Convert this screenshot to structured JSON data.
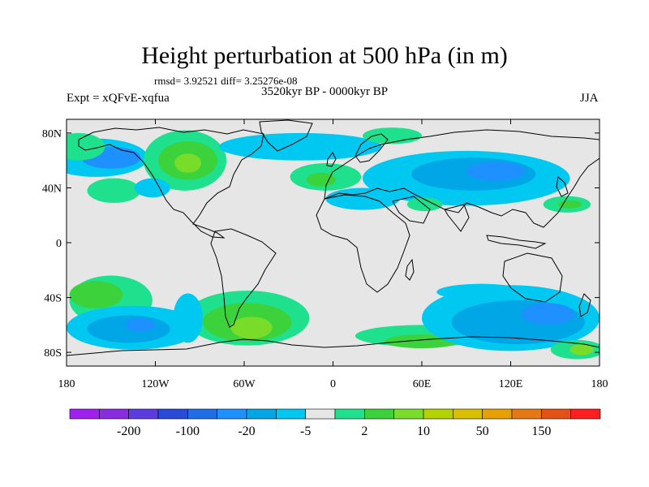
{
  "title": "Height perturbation at 500 hPa (in m)",
  "stats_text": "rmsd= 3.92521 diff= 3.25276e-08",
  "period_text": "3520kyr BP - 0000kyr BP",
  "experiment_text": "Expt = xQFvE-xqfua",
  "season_text": "JJA",
  "map": {
    "projection": "cylindrical-equidistant",
    "lon_range": [
      -180,
      180
    ],
    "lat_range": [
      -90,
      90
    ],
    "background_color": "#e6e6e6",
    "coastline_color": "#000000",
    "lat_ticks": [
      {
        "lat": 80,
        "label": "80N"
      },
      {
        "lat": 40,
        "label": "40N"
      },
      {
        "lat": 0,
        "label": "0"
      },
      {
        "lat": -40,
        "label": "40S"
      },
      {
        "lat": -80,
        "label": "80S"
      }
    ],
    "lon_ticks": [
      {
        "lon": -180,
        "label": "180"
      },
      {
        "lon": -120,
        "label": "120W"
      },
      {
        "lon": -60,
        "label": "60W"
      },
      {
        "lon": 0,
        "label": "0"
      },
      {
        "lon": 60,
        "label": "60E"
      },
      {
        "lon": 120,
        "label": "120E"
      },
      {
        "lon": 180,
        "label": "180"
      }
    ]
  },
  "colorbar": {
    "colors": [
      "#a020f0",
      "#8a2be2",
      "#5a3ce0",
      "#2a4bd8",
      "#1e6ee6",
      "#1e90ff",
      "#00a6e6",
      "#00c8f0",
      "#e6e6e6",
      "#1fe08c",
      "#3cd23c",
      "#78dc28",
      "#b4d200",
      "#d8c000",
      "#e6a000",
      "#e67814",
      "#e65014",
      "#ff1e1e"
    ],
    "labels": [
      {
        "after_index": 1,
        "text": "-200"
      },
      {
        "after_index": 3,
        "text": "-100"
      },
      {
        "after_index": 5,
        "text": "-20"
      },
      {
        "after_index": 7,
        "text": "-5"
      },
      {
        "after_index": 9,
        "text": "2"
      },
      {
        "after_index": 11,
        "text": "10"
      },
      {
        "after_index": 13,
        "text": "50"
      },
      {
        "after_index": 15,
        "text": "150"
      }
    ]
  },
  "anomaly_regions": [
    {
      "name": "north-pacific-negative",
      "color": "#00c8f0",
      "lon": -160,
      "lat": 62,
      "rx": 35,
      "ry": 14
    },
    {
      "name": "north-pacific-negative-core",
      "color": "#1e90ff",
      "lon": -150,
      "lat": 62,
      "rx": 20,
      "ry": 8
    },
    {
      "name": "alaska-positive",
      "color": "#1fe08c",
      "lon": -172,
      "lat": 70,
      "rx": 18,
      "ry": 10
    },
    {
      "name": "north-america-positive",
      "color": "#1fe08c",
      "lon": -100,
      "lat": 60,
      "rx": 28,
      "ry": 22
    },
    {
      "name": "north-america-positive-core",
      "color": "#3cd23c",
      "lon": -98,
      "lat": 60,
      "rx": 20,
      "ry": 14
    },
    {
      "name": "north-america-positive-peak",
      "color": "#78dc28",
      "lon": -98,
      "lat": 58,
      "rx": 9,
      "ry": 7
    },
    {
      "name": "east-pacific-positive",
      "color": "#1fe08c",
      "lon": -148,
      "lat": 38,
      "rx": 18,
      "ry": 9
    },
    {
      "name": "us-west-negative",
      "color": "#00c8f0",
      "lon": -122,
      "lat": 40,
      "rx": 12,
      "ry": 7
    },
    {
      "name": "atlantic-negative",
      "color": "#00c8f0",
      "lon": -22,
      "lat": 70,
      "rx": 55,
      "ry": 10
    },
    {
      "name": "europe-positive",
      "color": "#1fe08c",
      "lon": -5,
      "lat": 48,
      "rx": 24,
      "ry": 10
    },
    {
      "name": "europe-positive-core",
      "color": "#3cd23c",
      "lon": -8,
      "lat": 46,
      "rx": 10,
      "ry": 5
    },
    {
      "name": "arctic-positive",
      "color": "#1fe08c",
      "lon": 40,
      "lat": 78,
      "rx": 20,
      "ry": 6
    },
    {
      "name": "eurasia-negative",
      "color": "#00c8f0",
      "lon": 90,
      "lat": 47,
      "rx": 70,
      "ry": 20
    },
    {
      "name": "eurasia-negative-core",
      "color": "#00a6e6",
      "lon": 95,
      "lat": 50,
      "rx": 42,
      "ry": 12
    },
    {
      "name": "eurasia-negative-deep",
      "color": "#1e90ff",
      "lon": 110,
      "lat": 52,
      "rx": 20,
      "ry": 7
    },
    {
      "name": "mediterranean-negative",
      "color": "#00c8f0",
      "lon": 20,
      "lat": 32,
      "rx": 25,
      "ry": 8
    },
    {
      "name": "west-asia-positive",
      "color": "#1fe08c",
      "lon": 62,
      "lat": 28,
      "rx": 12,
      "ry": 5
    },
    {
      "name": "east-asia-positive",
      "color": "#1fe08c",
      "lon": 158,
      "lat": 28,
      "rx": 16,
      "ry": 6
    },
    {
      "name": "east-asia-positive-core",
      "color": "#3cd23c",
      "lon": 160,
      "lat": 28,
      "rx": 8,
      "ry": 3
    },
    {
      "name": "south-pacific-positive",
      "color": "#1fe08c",
      "lon": -150,
      "lat": -42,
      "rx": 28,
      "ry": 18
    },
    {
      "name": "south-pacific-positive-core",
      "color": "#3cd23c",
      "lon": -160,
      "lat": -38,
      "rx": 18,
      "ry": 10
    },
    {
      "name": "south-pacific-negative",
      "color": "#00c8f0",
      "lon": -135,
      "lat": -62,
      "rx": 45,
      "ry": 16
    },
    {
      "name": "south-pacific-negative-core",
      "color": "#00a6e6",
      "lon": -138,
      "lat": -63,
      "rx": 28,
      "ry": 10
    },
    {
      "name": "south-pacific-negative-deep",
      "color": "#1e90ff",
      "lon": -130,
      "lat": -60,
      "rx": 10,
      "ry": 5
    },
    {
      "name": "south-atlantic-positive",
      "color": "#1fe08c",
      "lon": -58,
      "lat": -55,
      "rx": 42,
      "ry": 20
    },
    {
      "name": "south-atlantic-positive-core",
      "color": "#3cd23c",
      "lon": -58,
      "lat": -58,
      "rx": 30,
      "ry": 14
    },
    {
      "name": "south-atlantic-positive-peak",
      "color": "#78dc28",
      "lon": -55,
      "lat": -62,
      "rx": 14,
      "ry": 8
    },
    {
      "name": "south-america-west-negative",
      "color": "#00c8f0",
      "lon": -98,
      "lat": -55,
      "rx": 10,
      "ry": 18
    },
    {
      "name": "south-indian-positive",
      "color": "#1fe08c",
      "lon": 60,
      "lat": -68,
      "rx": 45,
      "ry": 8
    },
    {
      "name": "south-indian-positive-core",
      "color": "#3cd23c",
      "lon": 60,
      "lat": -72,
      "rx": 25,
      "ry": 5
    },
    {
      "name": "southern-ocean-negative",
      "color": "#00c8f0",
      "lon": 120,
      "lat": -55,
      "rx": 60,
      "ry": 24
    },
    {
      "name": "southern-ocean-negative-core",
      "color": "#00a6e6",
      "lon": 125,
      "lat": -58,
      "rx": 45,
      "ry": 16
    },
    {
      "name": "southern-ocean-negative-deep",
      "color": "#1e90ff",
      "lon": 145,
      "lat": -52,
      "rx": 18,
      "ry": 8
    },
    {
      "name": "australia-negative",
      "color": "#00c8f0",
      "lon": 100,
      "lat": -36,
      "rx": 30,
      "ry": 6
    },
    {
      "name": "ross-sea-positive",
      "color": "#1fe08c",
      "lon": 165,
      "lat": -78,
      "rx": 18,
      "ry": 7
    },
    {
      "name": "ross-sea-positive-core",
      "color": "#78dc28",
      "lon": 168,
      "lat": -78,
      "rx": 8,
      "ry": 4
    }
  ]
}
